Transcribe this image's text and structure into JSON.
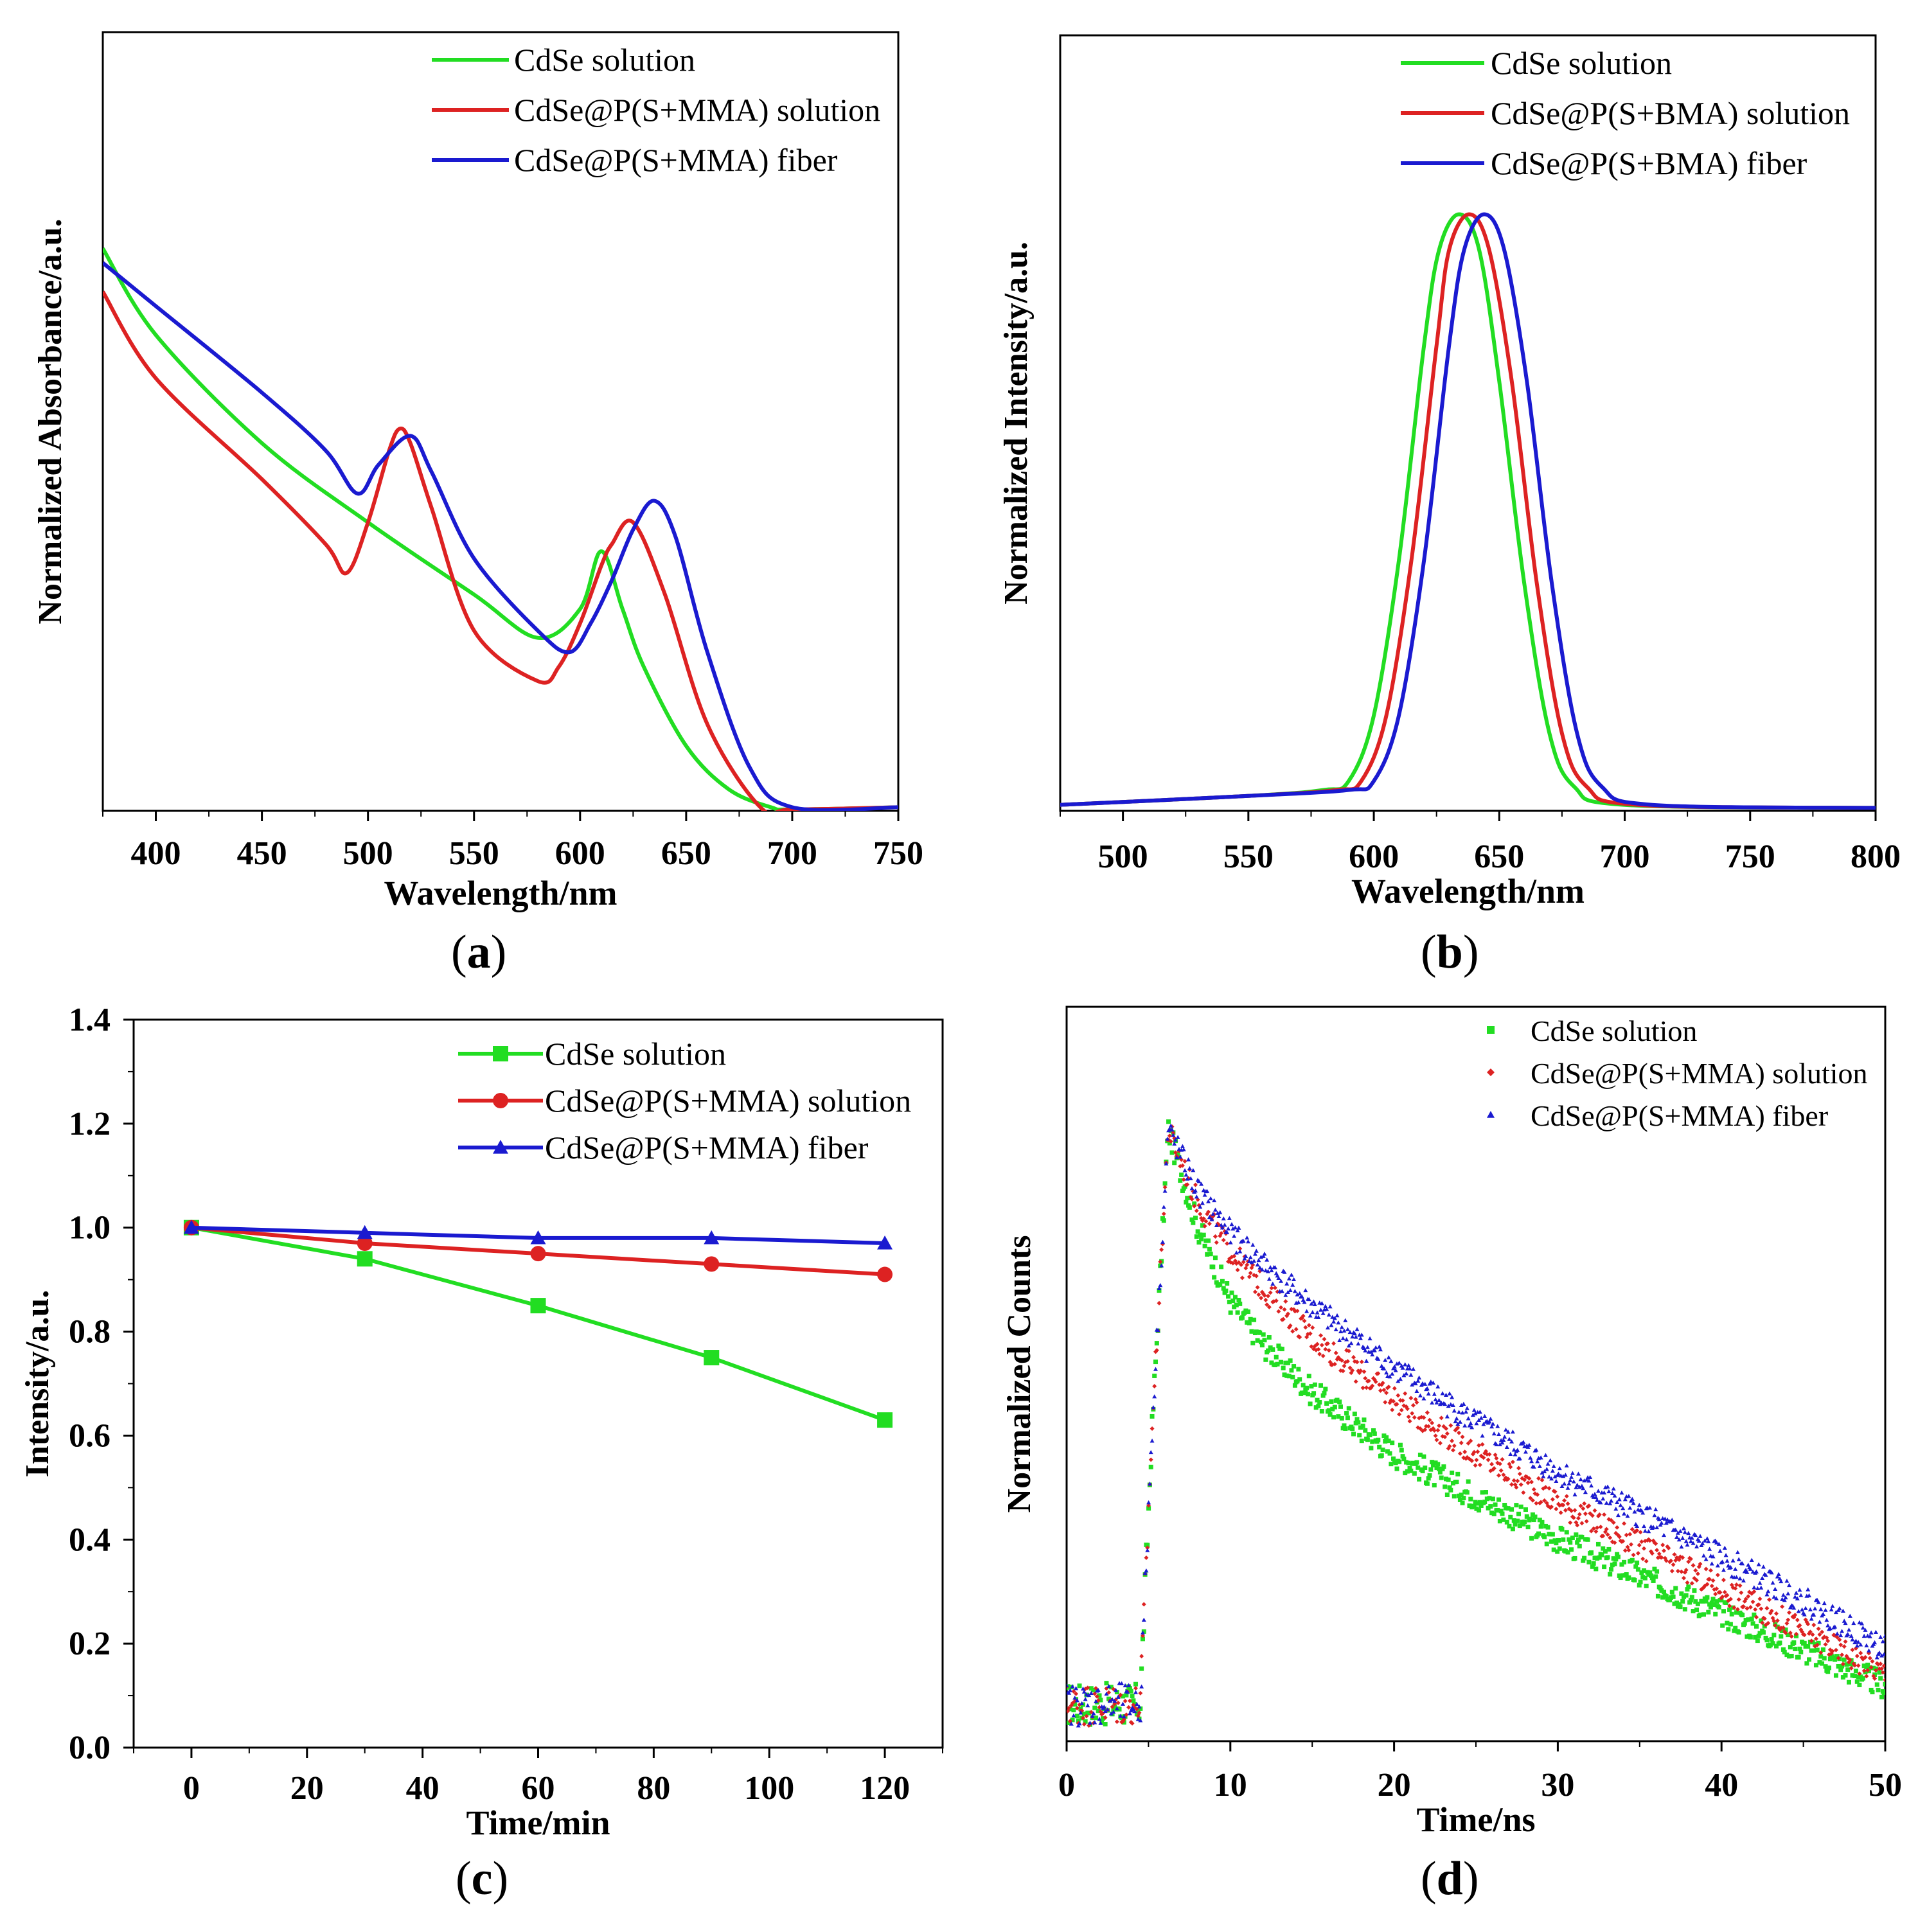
{
  "figure": {
    "captions": [
      "a",
      "b",
      "c",
      "d"
    ]
  },
  "colors": {
    "green": "#22dd22",
    "red": "#dd2222",
    "blue": "#1a1ad0",
    "axis": "#000000"
  },
  "chart_data": [
    {
      "id": "a",
      "type": "line",
      "xlabel": "Wavelength/nm",
      "ylabel": "Normalized Absorbance/a.u.",
      "xlim": [
        375,
        750
      ],
      "ylim": [
        0,
        1.08
      ],
      "xticks": [
        400,
        450,
        500,
        550,
        600,
        650,
        700,
        750
      ],
      "yticks": [],
      "legend_position": "top-right",
      "series": [
        {
          "name": "CdSe solution",
          "color": "green",
          "x": [
            375,
            400,
            450,
            500,
            550,
            580,
            600,
            610,
            620,
            630,
            650,
            670,
            690,
            700,
            750
          ],
          "y": [
            0.78,
            0.66,
            0.51,
            0.4,
            0.3,
            0.24,
            0.28,
            0.36,
            0.28,
            0.2,
            0.09,
            0.03,
            0.005,
            0.002,
            0.005
          ]
        },
        {
          "name": "CdSe@P(S+MMA) solution",
          "color": "red",
          "x": [
            375,
            400,
            450,
            480,
            490,
            500,
            510,
            515,
            520,
            530,
            550,
            580,
            590,
            600,
            610,
            615,
            625,
            640,
            660,
            685,
            700,
            750
          ],
          "y": [
            0.72,
            0.6,
            0.46,
            0.37,
            0.33,
            0.4,
            0.5,
            0.53,
            0.51,
            0.42,
            0.25,
            0.18,
            0.2,
            0.26,
            0.34,
            0.37,
            0.4,
            0.3,
            0.12,
            0.005,
            0.002,
            0.005
          ]
        },
        {
          "name": "CdSe@P(S+MMA) fiber",
          "color": "blue",
          "x": [
            375,
            400,
            450,
            480,
            495,
            505,
            520,
            530,
            550,
            580,
            595,
            605,
            615,
            625,
            635,
            645,
            660,
            680,
            700,
            750
          ],
          "y": [
            0.76,
            0.7,
            0.58,
            0.5,
            0.44,
            0.48,
            0.52,
            0.47,
            0.35,
            0.25,
            0.22,
            0.26,
            0.32,
            0.39,
            0.43,
            0.38,
            0.22,
            0.06,
            0.005,
            0.005
          ]
        }
      ]
    },
    {
      "id": "b",
      "type": "line",
      "xlabel": "Wavelength/nm",
      "ylabel": "Normalized Intensity/a.u.",
      "xlim": [
        475,
        800
      ],
      "ylim": [
        0,
        1.3
      ],
      "xticks": [
        500,
        550,
        600,
        650,
        700,
        750,
        800
      ],
      "yticks": [],
      "legend_position": "top-right",
      "series": [
        {
          "name": "CdSe solution",
          "color": "green",
          "x": [
            475,
            550,
            580,
            590,
            600,
            610,
            620,
            626,
            634,
            642,
            650,
            660,
            670,
            680,
            700,
            800
          ],
          "y": [
            0.01,
            0.025,
            0.035,
            0.05,
            0.16,
            0.42,
            0.78,
            0.94,
            1.0,
            0.94,
            0.72,
            0.38,
            0.13,
            0.04,
            0.01,
            0.005
          ]
        },
        {
          "name": "CdSe@P(S+BMA) solution",
          "color": "red",
          "x": [
            475,
            550,
            585,
            595,
            605,
            615,
            625,
            630,
            638,
            646,
            655,
            665,
            675,
            685,
            705,
            800
          ],
          "y": [
            0.01,
            0.025,
            0.035,
            0.05,
            0.16,
            0.42,
            0.78,
            0.94,
            1.0,
            0.94,
            0.72,
            0.38,
            0.13,
            0.04,
            0.01,
            0.005
          ]
        },
        {
          "name": "CdSe@P(S+BMA) fiber",
          "color": "blue",
          "x": [
            475,
            550,
            590,
            600,
            610,
            620,
            630,
            636,
            644,
            652,
            661,
            671,
            681,
            691,
            711,
            800
          ],
          "y": [
            0.01,
            0.025,
            0.035,
            0.05,
            0.16,
            0.42,
            0.78,
            0.94,
            1.0,
            0.94,
            0.72,
            0.38,
            0.13,
            0.04,
            0.01,
            0.005
          ]
        }
      ]
    },
    {
      "id": "c",
      "type": "line",
      "xlabel": "Time/min",
      "ylabel": "Intensity/a.u.",
      "xlim": [
        -10,
        130
      ],
      "ylim": [
        0.0,
        1.4
      ],
      "xticks": [
        0,
        20,
        40,
        60,
        80,
        100,
        120
      ],
      "yticks": [
        0.0,
        0.2,
        0.4,
        0.6,
        0.8,
        1.0,
        1.2,
        1.4
      ],
      "ytick_labels": [
        "0.0",
        "0.2",
        "0.4",
        "0.6",
        "0.8",
        "1.0",
        "1.2",
        "1.4"
      ],
      "legend_position": "top-right",
      "series": [
        {
          "name": "CdSe solution",
          "color": "green",
          "marker": "square",
          "x": [
            0,
            30,
            60,
            90,
            120
          ],
          "y": [
            1.0,
            0.94,
            0.85,
            0.75,
            0.63
          ]
        },
        {
          "name": "CdSe@P(S+MMA) solution",
          "color": "red",
          "marker": "circle",
          "x": [
            0,
            30,
            60,
            90,
            120
          ],
          "y": [
            1.0,
            0.97,
            0.95,
            0.93,
            0.91
          ]
        },
        {
          "name": "CdSe@P(S+MMA) fiber",
          "color": "blue",
          "marker": "triangle",
          "x": [
            0,
            30,
            60,
            90,
            120
          ],
          "y": [
            1.0,
            0.99,
            0.98,
            0.98,
            0.97
          ]
        }
      ]
    },
    {
      "id": "d",
      "type": "scatter",
      "xlabel": "Time/ns",
      "ylabel": "Normalized Counts",
      "xlim": [
        0,
        50
      ],
      "ylim": [
        0,
        1.2
      ],
      "xticks": [
        0,
        10,
        20,
        30,
        40,
        50
      ],
      "yticks": [],
      "legend_position": "top-right",
      "series": [
        {
          "name": "CdSe solution",
          "color": "green",
          "marker": "square",
          "x": [
            0,
            4.5,
            5.2,
            6.2,
            8,
            10,
            12,
            15,
            20,
            25,
            30,
            35,
            40,
            45,
            50
          ],
          "y": [
            0.06,
            0.06,
            0.5,
            1.0,
            0.84,
            0.72,
            0.65,
            0.57,
            0.47,
            0.4,
            0.33,
            0.27,
            0.21,
            0.15,
            0.09
          ]
        },
        {
          "name": "CdSe@P(S+MMA) solution",
          "color": "red",
          "marker": "diamond",
          "x": [
            0,
            4.5,
            5.2,
            6.2,
            8,
            10,
            12,
            15,
            20,
            25,
            30,
            35,
            40,
            45,
            50
          ],
          "y": [
            0.06,
            0.06,
            0.5,
            1.0,
            0.88,
            0.8,
            0.74,
            0.66,
            0.56,
            0.47,
            0.39,
            0.32,
            0.25,
            0.18,
            0.11
          ]
        },
        {
          "name": "CdSe@P(S+MMA) fiber",
          "color": "blue",
          "marker": "triangle",
          "x": [
            0,
            4.5,
            5.2,
            6.2,
            8,
            10,
            12,
            15,
            20,
            25,
            30,
            35,
            40,
            45,
            50
          ],
          "y": [
            0.06,
            0.06,
            0.5,
            1.0,
            0.9,
            0.83,
            0.78,
            0.71,
            0.61,
            0.52,
            0.44,
            0.37,
            0.3,
            0.23,
            0.15
          ]
        }
      ]
    }
  ]
}
